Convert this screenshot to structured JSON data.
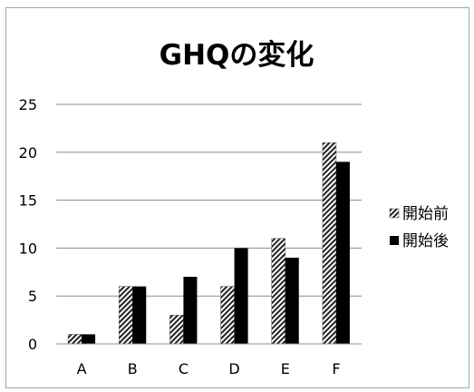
{
  "chart_data": {
    "type": "bar",
    "title": "GHQの変化",
    "xlabel": "",
    "ylabel": "",
    "categories": [
      "A",
      "B",
      "C",
      "D",
      "E",
      "F"
    ],
    "series": [
      {
        "name": "開始前",
        "values": [
          1,
          6,
          3,
          6,
          11,
          21
        ],
        "pattern": "diagonal-hatch",
        "color": "#000000"
      },
      {
        "name": "開始後",
        "values": [
          1,
          6,
          7,
          10,
          9,
          19
        ],
        "pattern": "solid",
        "color": "#000000"
      }
    ],
    "ylim": [
      0,
      25
    ],
    "yticks": [
      0,
      5,
      10,
      15,
      20,
      25
    ],
    "grid": true,
    "gridline_color": "#8c8c8c",
    "legend_position": "right"
  }
}
